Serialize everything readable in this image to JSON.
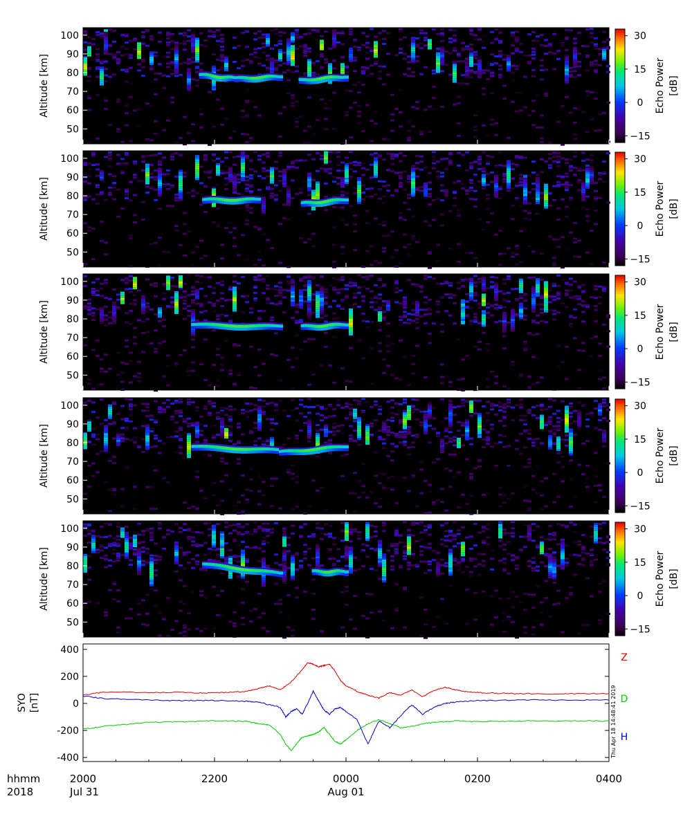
{
  "panels_common": {
    "ylabel": "Altitude [km]",
    "yticks": [
      50,
      60,
      70,
      80,
      90,
      100
    ],
    "ylim": [
      42,
      104
    ],
    "colorbar": {
      "label_line1": "Echo Power",
      "label_line2": "[dB]",
      "ticks": [
        "30",
        "15",
        "0",
        "−15"
      ],
      "tick_values": [
        30,
        15,
        0,
        -15
      ],
      "range": [
        -18,
        33
      ]
    }
  },
  "chart_data": [
    {
      "type": "heatmap",
      "name": "",
      "layer_events": [
        {
          "t_start": 2147,
          "t_end": 2220,
          "alt_start": 79,
          "alt_end": 77
        },
        {
          "t_start": 2220,
          "t_end": 2300,
          "alt_start": 77,
          "alt_end": 78
        },
        {
          "t_start": 2318,
          "t_end": 2400,
          "alt_start": 76,
          "alt_end": 78
        }
      ]
    },
    {
      "type": "heatmap",
      "name": "",
      "layer_events": [
        {
          "t_start": 2150,
          "t_end": 2240,
          "alt_start": 78,
          "alt_end": 78
        },
        {
          "t_start": 2320,
          "t_end": 2400,
          "alt_start": 76,
          "alt_end": 78
        }
      ]
    },
    {
      "type": "heatmap",
      "name": "",
      "layer_events": [
        {
          "t_start": 2140,
          "t_end": 2300,
          "alt_start": 77,
          "alt_end": 76
        },
        {
          "t_start": 2320,
          "t_end": 2400,
          "alt_start": 76,
          "alt_end": 77
        }
      ]
    },
    {
      "type": "heatmap",
      "name": "",
      "layer_events": [
        {
          "t_start": 2140,
          "t_end": 2300,
          "alt_start": 78,
          "alt_end": 76
        },
        {
          "t_start": 2300,
          "t_end": 2400,
          "alt_start": 75,
          "alt_end": 78
        }
      ]
    },
    {
      "type": "heatmap",
      "name": "",
      "layer_events": [
        {
          "t_start": 2150,
          "t_end": 2300,
          "alt_start": 81,
          "alt_end": 76
        },
        {
          "t_start": 2330,
          "t_end": 2400,
          "alt_start": 77,
          "alt_end": 77
        }
      ]
    },
    {
      "type": "line",
      "ylabel_line1": "SYO",
      "ylabel_line2": "[nT]",
      "ylim": [
        -430,
        440
      ],
      "yticks": [
        400,
        200,
        0,
        -200,
        -400
      ],
      "timestamp": "Thu Apr 18 14:48:41 2019",
      "x_units": "minutes since 2018-07-31 20:00 UT",
      "series": [
        {
          "name": "Z",
          "color": "#dd0000",
          "x": [
            0,
            20,
            60,
            90,
            110,
            130,
            150,
            160,
            170,
            180,
            190,
            200,
            205,
            210,
            215,
            220,
            225,
            230,
            235,
            240,
            250,
            260,
            270,
            280,
            290,
            300,
            310,
            320,
            330,
            340,
            350,
            360,
            380,
            400,
            420,
            440,
            480
          ],
          "y": [
            60,
            85,
            78,
            82,
            76,
            80,
            90,
            110,
            130,
            100,
            160,
            250,
            300,
            290,
            270,
            280,
            290,
            240,
            170,
            130,
            90,
            60,
            40,
            80,
            60,
            100,
            50,
            95,
            120,
            100,
            85,
            80,
            75,
            72,
            70,
            72,
            72
          ]
        },
        {
          "name": "D",
          "color": "#00cc00",
          "x": [
            0,
            20,
            60,
            90,
            110,
            130,
            150,
            160,
            170,
            180,
            185,
            190,
            195,
            200,
            205,
            210,
            215,
            220,
            225,
            230,
            235,
            240,
            250,
            260,
            270,
            280,
            290,
            300,
            310,
            320,
            330,
            340,
            360,
            400,
            440,
            480
          ],
          "y": [
            -190,
            -170,
            -140,
            -135,
            -130,
            -128,
            -135,
            -150,
            -160,
            -230,
            -300,
            -350,
            -300,
            -250,
            -240,
            -230,
            -210,
            -180,
            -230,
            -280,
            -300,
            -270,
            -200,
            -150,
            -120,
            -150,
            -180,
            -170,
            -150,
            -140,
            -135,
            -130,
            -135,
            -130,
            -130,
            -130
          ]
        },
        {
          "name": "H",
          "color": "#0000cc",
          "x": [
            0,
            20,
            60,
            90,
            110,
            130,
            150,
            160,
            170,
            180,
            185,
            190,
            195,
            200,
            205,
            210,
            215,
            220,
            225,
            230,
            235,
            240,
            250,
            260,
            270,
            280,
            290,
            300,
            310,
            320,
            330,
            340,
            360,
            400,
            440,
            480
          ],
          "y": [
            55,
            35,
            25,
            20,
            22,
            20,
            15,
            10,
            -10,
            -30,
            -100,
            -60,
            -40,
            -80,
            0,
            90,
            20,
            -50,
            -80,
            -40,
            -30,
            -60,
            -120,
            -300,
            -130,
            -180,
            -90,
            -10,
            -80,
            -30,
            0,
            10,
            20,
            25,
            25,
            25
          ]
        }
      ]
    }
  ],
  "time_axis": {
    "row1_label": "hhmm",
    "row2_label": "2018",
    "ticks": [
      "2000",
      "2200",
      "0000",
      "0200",
      "0400"
    ],
    "tick_minutes": [
      0,
      120,
      240,
      360,
      480
    ],
    "dates": [
      {
        "label": "Jul 31",
        "minute": 0
      },
      {
        "label": "Aug 01",
        "minute": 240
      }
    ],
    "range_minutes": [
      0,
      480
    ]
  }
}
